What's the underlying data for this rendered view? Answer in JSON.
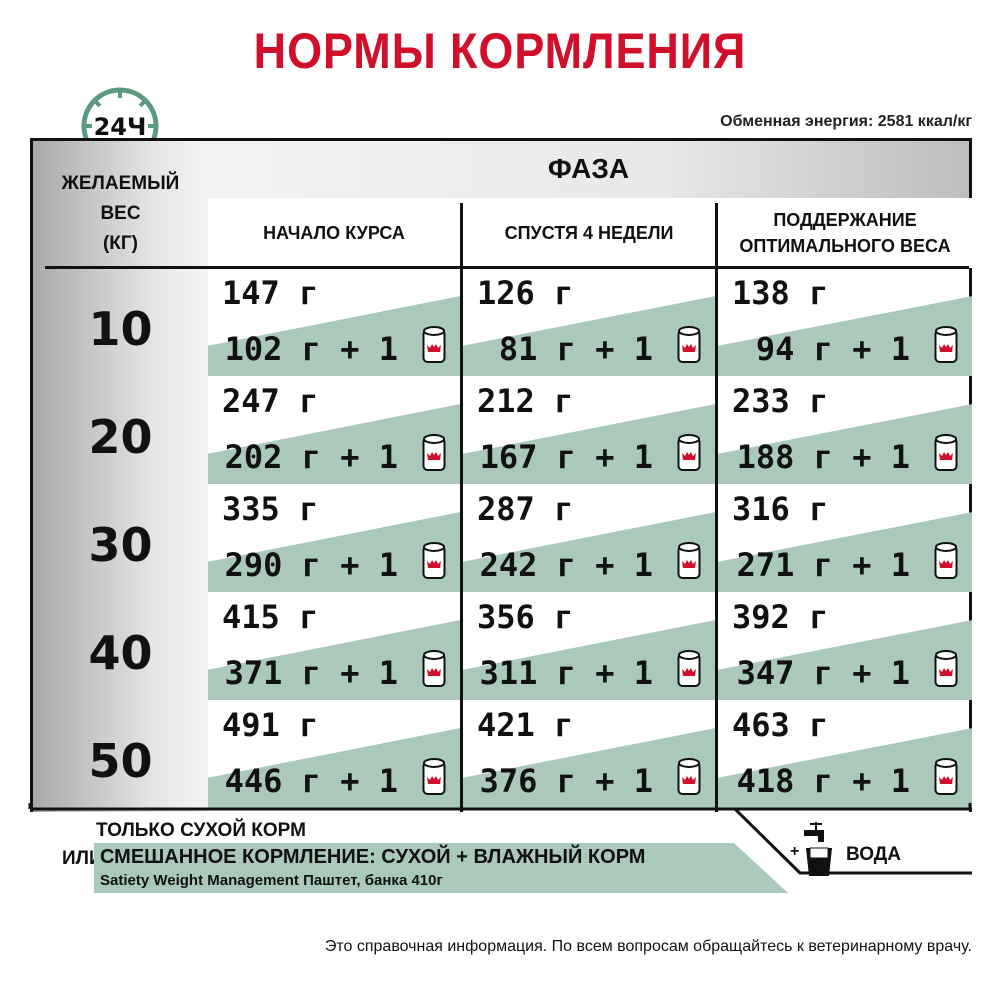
{
  "title": "НОРМЫ КОРМЛЕНИЯ",
  "clock_label": "24Ч",
  "energy": "Обменная энергия: 2581 ккал/кг",
  "weight_header": [
    "ЖЕЛАЕМЫЙ",
    "ВЕС",
    "(КГ)"
  ],
  "phase_header": "ФАЗА",
  "columns": [
    [
      "НАЧАЛО КУРСА"
    ],
    [
      "СПУСТЯ 4 НЕДЕЛИ"
    ],
    [
      "ПОДДЕРЖАНИЕ",
      "ОПТИМАЛЬНОГО ВЕСА"
    ]
  ],
  "rows": [
    {
      "weight": "10",
      "cells": [
        {
          "dry": "147 г",
          "mix": "102 г + 1"
        },
        {
          "dry": "126 г",
          "mix": "81 г + 1"
        },
        {
          "dry": "138 г",
          "mix": "94 г + 1"
        }
      ]
    },
    {
      "weight": "20",
      "cells": [
        {
          "dry": "247 г",
          "mix": "202 г + 1"
        },
        {
          "dry": "212 г",
          "mix": "167 г + 1"
        },
        {
          "dry": "233 г",
          "mix": "188 г + 1"
        }
      ]
    },
    {
      "weight": "30",
      "cells": [
        {
          "dry": "335 г",
          "mix": "290 г + 1"
        },
        {
          "dry": "287 г",
          "mix": "242 г + 1"
        },
        {
          "dry": "316 г",
          "mix": "271 г + 1"
        }
      ]
    },
    {
      "weight": "40",
      "cells": [
        {
          "dry": "415 г",
          "mix": "371 г + 1"
        },
        {
          "dry": "356 г",
          "mix": "311 г + 1"
        },
        {
          "dry": "392 г",
          "mix": "347 г + 1"
        }
      ]
    },
    {
      "weight": "50",
      "cells": [
        {
          "dry": "491 г",
          "mix": "446 г + 1"
        },
        {
          "dry": "421 г",
          "mix": "376 г + 1"
        },
        {
          "dry": "463 г",
          "mix": "418 г + 1"
        }
      ]
    }
  ],
  "legend": {
    "dry_only": "ТОЛЬКО СУХОЙ КОРМ",
    "or": "ИЛИ",
    "mixed": "СМЕШАННОЕ КОРМЛЕНИЕ: СУХОЙ + ВЛАЖНЫЙ КОРМ",
    "mixed_product": "Satiety Weight Management Паштет, банка 410г",
    "water": "ВОДА",
    "water_plus": "+"
  },
  "footer": "Это справочная информация. По всем вопросам обращайтесь к ветеринарному врачу.",
  "colors": {
    "title": "#d0102a",
    "green": "#abc9bb",
    "clock": "#5c9a80"
  }
}
